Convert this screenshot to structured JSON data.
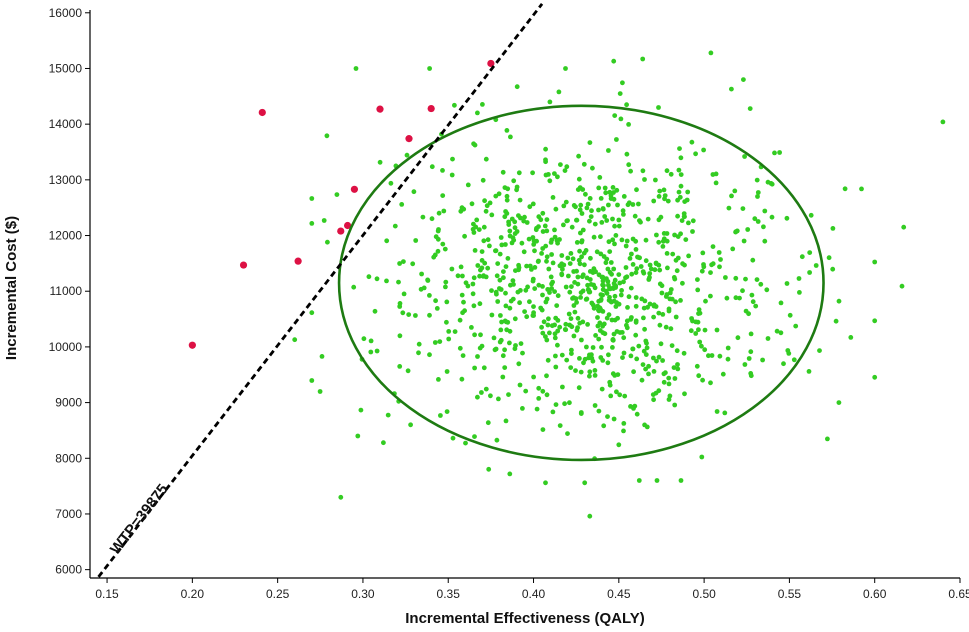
{
  "chart_data": {
    "type": "scatter",
    "title": "",
    "xlabel": "Incremental Effectiveness (QALY)",
    "ylabel": "Incremental Cost ($)",
    "xlim": [
      0.14,
      0.65
    ],
    "ylim": [
      5850,
      16050
    ],
    "x_ticks": [
      "0.15",
      "0.20",
      "0.25",
      "0.30",
      "0.35",
      "0.40",
      "0.45",
      "0.50",
      "0.55",
      "0.60",
      "0.65"
    ],
    "y_ticks": [
      "6000",
      "7000",
      "8000",
      "9000",
      "10000",
      "11000",
      "12000",
      "13000",
      "14000",
      "15000",
      "16000"
    ],
    "grid": false,
    "colors": {
      "inside": "#33cc22",
      "outside": "#dd1144",
      "ellipse": "#1e7b12",
      "wtp_line": "#000000"
    },
    "wtp": {
      "label": "WTP=39875",
      "slope_per_qaly": 39875,
      "from": [
        0.145,
        5870
      ],
      "to": [
        0.405,
        16160
      ]
    },
    "ellipse": {
      "center": [
        0.428,
        11150
      ],
      "rx": 0.142,
      "ry": 3180
    },
    "outlier_points": [
      [
        0.2,
        10030
      ],
      [
        0.23,
        11470
      ],
      [
        0.241,
        14210
      ],
      [
        0.262,
        11540
      ],
      [
        0.287,
        12080
      ],
      [
        0.291,
        12180
      ],
      [
        0.295,
        12830
      ],
      [
        0.31,
        14270
      ],
      [
        0.327,
        13740
      ],
      [
        0.34,
        14280
      ],
      [
        0.375,
        15090
      ]
    ],
    "cloud": {
      "n": 1000,
      "center": [
        0.432,
        11150
      ],
      "spread": [
        0.058,
        1250
      ],
      "extra_points": [
        [
          0.64,
          14040
        ],
        [
          0.617,
          12150
        ],
        [
          0.616,
          11090
        ],
        [
          0.586,
          10170
        ],
        [
          0.579,
          9000
        ],
        [
          0.287,
          7300
        ],
        [
          0.433,
          6960
        ],
        [
          0.407,
          7560
        ],
        [
          0.43,
          7560
        ],
        [
          0.504,
          15280
        ],
        [
          0.464,
          15170
        ],
        [
          0.447,
          15130
        ],
        [
          0.523,
          14800
        ],
        [
          0.516,
          14630
        ],
        [
          0.527,
          14280
        ],
        [
          0.26,
          10130
        ],
        [
          0.276,
          9830
        ],
        [
          0.297,
          8400
        ],
        [
          0.312,
          8280
        ]
      ]
    }
  }
}
